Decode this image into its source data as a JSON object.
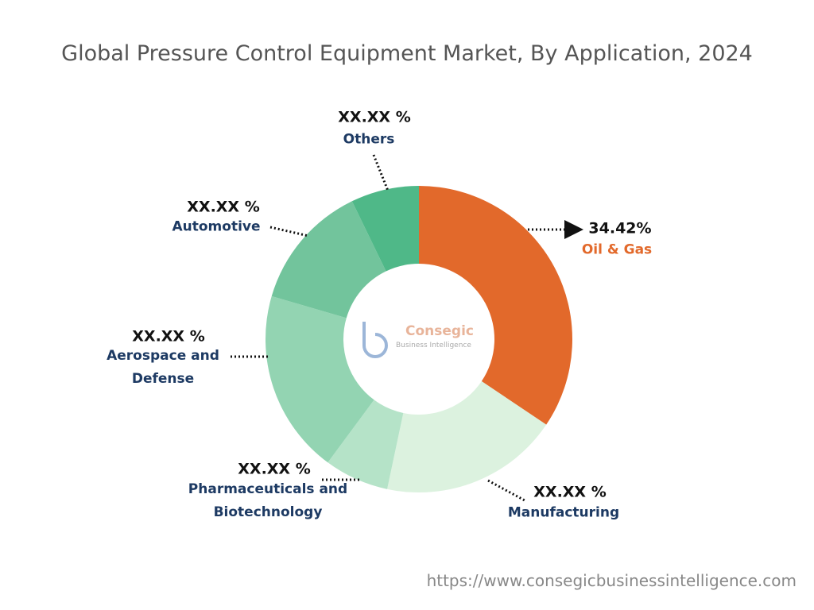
{
  "chart_data": {
    "type": "pie",
    "title": "Global Pressure Control Equipment Market, By Application, 2024",
    "categories": [
      "Oil & Gas",
      "Manufacturing",
      "Pharmaceuticals and Biotechnology",
      "Aerospace and Defense",
      "Automotive",
      "Others"
    ],
    "values": [
      34.42,
      18.9,
      6.8,
      19.4,
      13.3,
      7.18
    ],
    "value_labels": [
      "34.42%",
      "XX.XX %",
      "XX.XX %",
      "XX.XX %",
      "XX.XX %",
      "XX.XX %"
    ],
    "colors": [
      "#e2692b",
      "#dcf2df",
      "#b5e3c8",
      "#93d4b2",
      "#72c49c",
      "#4fb888"
    ],
    "watermark": {
      "name": "Consegic",
      "tagline": "Business Intelligence"
    },
    "source": "https://www.consegicbusinessintelligence.com"
  }
}
